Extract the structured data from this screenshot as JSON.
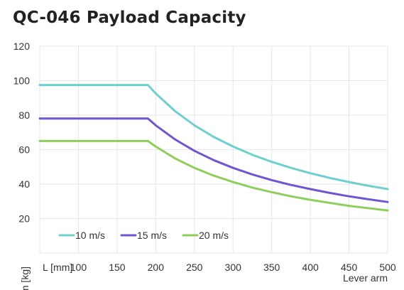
{
  "chart_data": {
    "type": "line",
    "title": "QC-046 Payload Capacity",
    "xlabel": "Lever arm",
    "ylabel": "m [kg]",
    "x_unit_tick": "L [mm]",
    "xlim": [
      50,
      500
    ],
    "ylim": [
      0,
      120
    ],
    "x_ticks": [
      100,
      150,
      200,
      250,
      300,
      350,
      400,
      450,
      500
    ],
    "y_ticks": [
      20,
      40,
      60,
      80,
      100,
      120
    ],
    "grid": true,
    "legend_position": "bottom-left",
    "x": [
      50,
      100,
      150,
      190,
      200,
      225,
      250,
      275,
      300,
      325,
      350,
      375,
      400,
      425,
      450,
      475,
      500
    ],
    "series": [
      {
        "name": "10 m/s",
        "color": "#6fcfcf",
        "values": [
          97.5,
          97.5,
          97.5,
          97.5,
          92.6,
          82.3,
          74.1,
          67.4,
          61.8,
          57.0,
          52.9,
          49.4,
          46.3,
          43.6,
          41.2,
          39.0,
          37.1
        ]
      },
      {
        "name": "15 m/s",
        "color": "#7054d0",
        "values": [
          78,
          78,
          78,
          78,
          74.1,
          65.9,
          59.3,
          53.9,
          49.4,
          45.6,
          42.3,
          39.5,
          37.1,
          34.9,
          32.9,
          31.2,
          29.6
        ]
      },
      {
        "name": "20 m/s",
        "color": "#8fce5c",
        "values": [
          65,
          65,
          65,
          65,
          61.8,
          54.9,
          49.4,
          44.9,
          41.2,
          38.0,
          35.3,
          32.9,
          30.9,
          29.1,
          27.4,
          26.0,
          24.7
        ]
      }
    ]
  }
}
